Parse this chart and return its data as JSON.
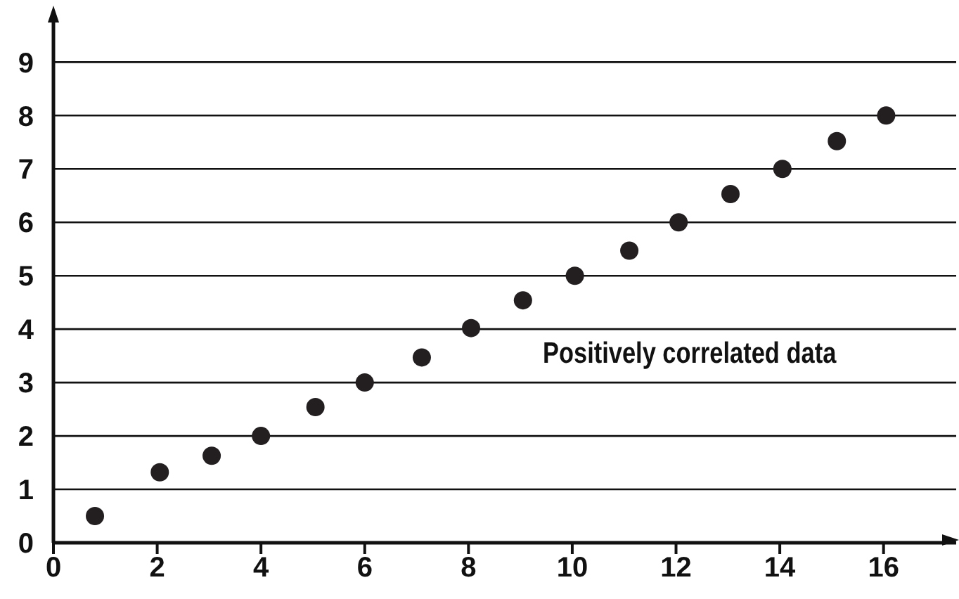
{
  "chart_data": {
    "type": "scatter",
    "annotations": [
      "Positively correlated data"
    ],
    "x": [
      0.8,
      2.05,
      3.05,
      4,
      5.05,
      6,
      7.1,
      8.05,
      9.05,
      10.05,
      11.1,
      12.05,
      13.05,
      14.05,
      15.1,
      16.05
    ],
    "values": [
      0.5,
      1.32,
      1.63,
      2,
      2.54,
      3,
      3.47,
      4.02,
      4.54,
      5,
      5.47,
      6,
      6.53,
      7,
      7.52,
      8
    ],
    "color": "#231f20",
    "marker": "circle",
    "grid": "y",
    "legend": false,
    "xlim": [
      0,
      17.4
    ],
    "xticks": [
      0,
      2,
      4,
      6,
      8,
      10,
      12,
      14,
      16
    ],
    "ylim": [
      0,
      9.9
    ],
    "yticks": [
      0,
      1,
      2,
      3,
      4,
      5,
      6,
      7,
      8,
      9
    ]
  }
}
